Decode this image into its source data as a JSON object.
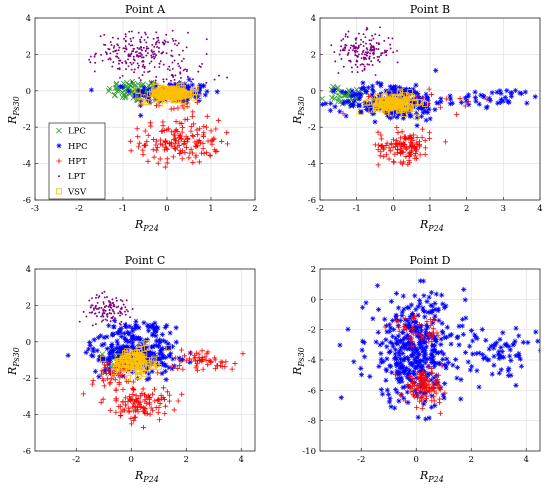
{
  "chart_data": [
    {
      "type": "scatter",
      "title": "Point A",
      "xlabel": "R",
      "xlabel_sub": "P24",
      "ylabel": "R",
      "ylabel_sub": "Ps30",
      "xlim": [
        -3,
        2
      ],
      "ylim": [
        -6,
        4
      ],
      "xticks": [
        -3,
        -2,
        -1,
        0,
        1,
        2
      ],
      "yticks": [
        -6,
        -4,
        -2,
        0,
        2,
        4
      ],
      "grid": true,
      "legend": "lower-left",
      "series": [
        {
          "name": "LPC",
          "marker": "x",
          "color": "#2ca02c",
          "clusters": [
            {
              "cx": -0.75,
              "cy": 0.0,
              "sx": 0.3,
              "sy": 0.3,
              "n": 70
            }
          ]
        },
        {
          "name": "HPC",
          "marker": "asterisk",
          "color": "#0000ff",
          "clusters": [
            {
              "cx": 0.1,
              "cy": -0.1,
              "sx": 0.45,
              "sy": 0.3,
              "n": 160
            }
          ]
        },
        {
          "name": "HPT",
          "marker": "plus",
          "color": "#ff0000",
          "clusters": [
            {
              "cx": 0.3,
              "cy": -2.8,
              "sx": 0.45,
              "sy": 0.6,
              "n": 150
            },
            {
              "cx": 0.1,
              "cy": -0.7,
              "sx": 0.4,
              "sy": 0.3,
              "n": 20
            }
          ]
        },
        {
          "name": "LPT",
          "marker": "dot",
          "color": "#800080",
          "clusters": [
            {
              "cx": -0.6,
              "cy": 2.1,
              "sx": 0.5,
              "sy": 0.55,
              "n": 220
            },
            {
              "cx": 0.2,
              "cy": 0.8,
              "sx": 0.4,
              "sy": 0.35,
              "n": 50
            }
          ]
        },
        {
          "name": "VSV",
          "marker": "square",
          "color": "#ffc000",
          "clusters": [
            {
              "cx": 0.05,
              "cy": -0.2,
              "sx": 0.3,
              "sy": 0.2,
              "n": 130
            }
          ]
        }
      ]
    },
    {
      "type": "scatter",
      "title": "Point B",
      "xlabel": "R",
      "xlabel_sub": "P24",
      "ylabel": "R",
      "ylabel_sub": "Ps30",
      "xlim": [
        -2,
        4
      ],
      "ylim": [
        -6,
        4
      ],
      "xticks": [
        -2,
        -1,
        0,
        1,
        2,
        3,
        4
      ],
      "yticks": [
        -6,
        -4,
        -2,
        0,
        2,
        4
      ],
      "grid": true,
      "series": [
        {
          "name": "LPC",
          "marker": "x",
          "color": "#2ca02c",
          "clusters": [
            {
              "cx": -1.3,
              "cy": -0.3,
              "sx": 0.3,
              "sy": 0.3,
              "n": 40
            }
          ]
        },
        {
          "name": "HPC",
          "marker": "asterisk",
          "color": "#0000ff",
          "clusters": [
            {
              "cx": 0.0,
              "cy": -0.6,
              "sx": 0.7,
              "sy": 0.5,
              "n": 260
            },
            {
              "cx": 2.9,
              "cy": -0.4,
              "sx": 0.6,
              "sy": 0.25,
              "n": 40
            }
          ]
        },
        {
          "name": "HPT",
          "marker": "plus",
          "color": "#ff0000",
          "clusters": [
            {
              "cx": 0.3,
              "cy": -3.0,
              "sx": 0.35,
              "sy": 0.45,
              "n": 120
            },
            {
              "cx": 1.2,
              "cy": -0.6,
              "sx": 0.8,
              "sy": 0.3,
              "n": 20
            }
          ]
        },
        {
          "name": "LPT",
          "marker": "dot",
          "color": "#800080",
          "clusters": [
            {
              "cx": -0.8,
              "cy": 2.2,
              "sx": 0.4,
              "sy": 0.5,
              "n": 170
            }
          ]
        },
        {
          "name": "VSV",
          "marker": "square",
          "color": "#ffc000",
          "clusters": [
            {
              "cx": 0.0,
              "cy": -0.7,
              "sx": 0.3,
              "sy": 0.25,
              "n": 130
            }
          ]
        }
      ]
    },
    {
      "type": "scatter",
      "title": "Point C",
      "xlabel": "R",
      "xlabel_sub": "P24",
      "ylabel": "R",
      "ylabel_sub": "Ps30",
      "xlim": [
        -3.5,
        4.5
      ],
      "ylim": [
        -6,
        4
      ],
      "xticks": [
        -2,
        0,
        2,
        4
      ],
      "yticks": [
        -6,
        -4,
        -2,
        0,
        2,
        4
      ],
      "grid": true,
      "series": [
        {
          "name": "LPC",
          "marker": "x",
          "color": "#2ca02c",
          "clusters": [
            {
              "cx": -0.6,
              "cy": -0.9,
              "sx": 0.3,
              "sy": 0.3,
              "n": 20
            }
          ]
        },
        {
          "name": "HPC",
          "marker": "asterisk",
          "color": "#0000ff",
          "clusters": [
            {
              "cx": 0.1,
              "cy": -0.6,
              "sx": 0.8,
              "sy": 0.6,
              "n": 260
            },
            {
              "cx": 0.4,
              "cy": 0.7,
              "sx": 0.5,
              "sy": 0.25,
              "n": 40
            }
          ]
        },
        {
          "name": "HPT",
          "marker": "plus",
          "color": "#ff0000",
          "clusters": [
            {
              "cx": 0.4,
              "cy": -3.4,
              "sx": 0.5,
              "sy": 0.45,
              "n": 110
            },
            {
              "cx": 2.6,
              "cy": -1.0,
              "sx": 0.6,
              "sy": 0.3,
              "n": 55
            },
            {
              "cx": -0.7,
              "cy": -2.0,
              "sx": 0.6,
              "sy": 0.5,
              "n": 50
            }
          ]
        },
        {
          "name": "LPT",
          "marker": "dot",
          "color": "#800080",
          "clusters": [
            {
              "cx": -0.8,
              "cy": 1.8,
              "sx": 0.4,
              "sy": 0.4,
              "n": 120
            }
          ]
        },
        {
          "name": "VSV",
          "marker": "square",
          "color": "#ffc000",
          "clusters": [
            {
              "cx": 0.1,
              "cy": -1.1,
              "sx": 0.35,
              "sy": 0.35,
              "n": 110
            }
          ]
        }
      ]
    },
    {
      "type": "scatter",
      "title": "Point D",
      "xlabel": "R",
      "xlabel_sub": "P24",
      "ylabel": "R",
      "ylabel_sub": "Ps30",
      "xlim": [
        -3.5,
        4.5
      ],
      "ylim": [
        -10,
        2
      ],
      "xticks": [
        -2,
        0,
        2,
        4
      ],
      "yticks": [
        -10,
        -8,
        -6,
        -4,
        -2,
        0,
        2
      ],
      "grid": true,
      "series": [
        {
          "name": "HPC",
          "marker": "asterisk",
          "color": "#0000ff",
          "clusters": [
            {
              "cx": 0.0,
              "cy": -3.4,
              "sx": 0.9,
              "sy": 1.8,
              "n": 420
            },
            {
              "cx": 3.1,
              "cy": -3.5,
              "sx": 0.6,
              "sy": 0.7,
              "n": 60
            }
          ]
        },
        {
          "name": "HPT",
          "marker": "plus",
          "color": "#ff0000",
          "clusters": [
            {
              "cx": 0.3,
              "cy": -5.8,
              "sx": 0.35,
              "sy": 0.5,
              "n": 110
            },
            {
              "cx": 0.0,
              "cy": -2.2,
              "sx": 0.5,
              "sy": 0.5,
              "n": 40
            }
          ]
        }
      ]
    }
  ]
}
